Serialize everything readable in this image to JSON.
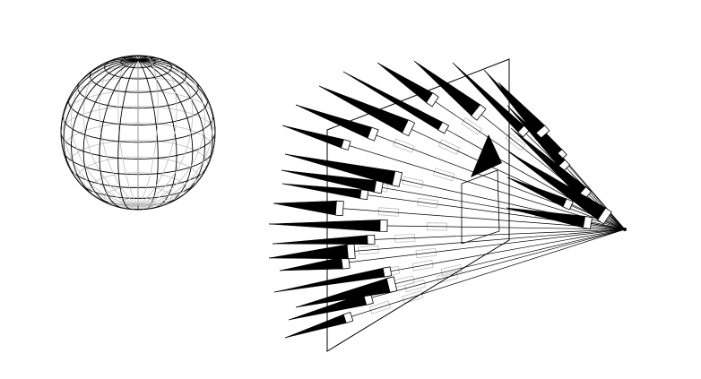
{
  "diagram": {
    "title": "",
    "colors": {
      "background": "#ffffff",
      "wire": "#000000",
      "hidden_wire": "#bdbdbd",
      "plane": "#000000"
    },
    "elements": [
      {
        "id": "sphere",
        "kind": "wireframe-sphere",
        "latitude_lines": 14,
        "longitude_lines": 24,
        "hidden_lines_shown": true
      },
      {
        "id": "projection-center",
        "kind": "point"
      },
      {
        "id": "image-plane",
        "kind": "wireframe-plane"
      },
      {
        "id": "ray-fan",
        "kind": "line-rays",
        "converges_at": "projection-center",
        "ray_count": 26
      },
      {
        "id": "spike-glyphs",
        "kind": "cone-glyphs",
        "count": 26
      },
      {
        "id": "hidden-tubes",
        "kind": "ghost-cylinders",
        "count": 30
      },
      {
        "id": "direction-arrow",
        "kind": "filled-triangle"
      }
    ]
  }
}
